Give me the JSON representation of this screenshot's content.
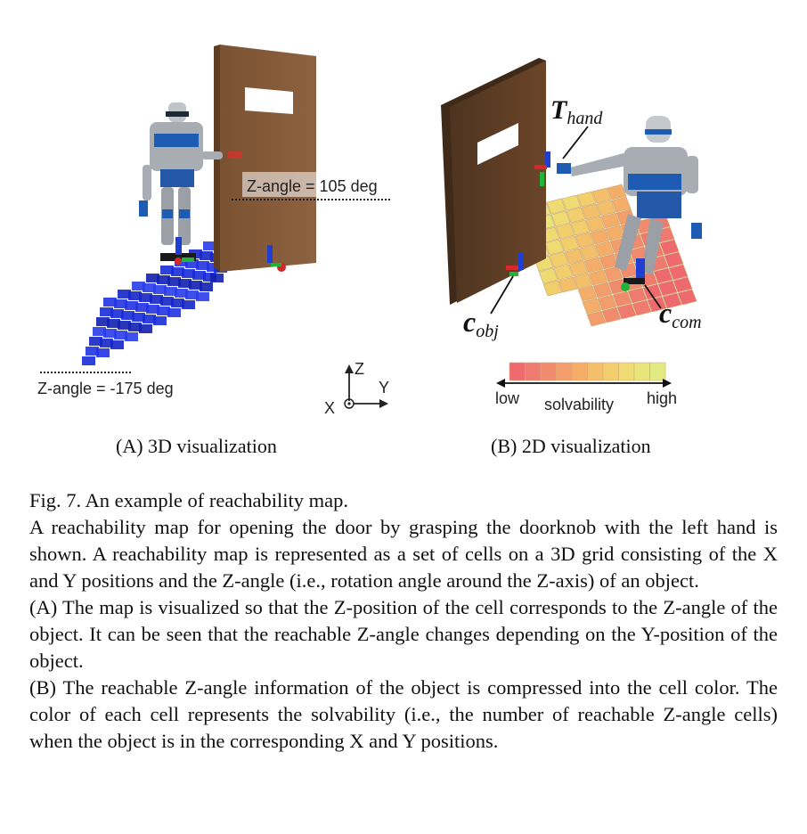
{
  "figure": {
    "panel_a": {
      "label_top": "Z-angle = 105 deg",
      "label_bottom": "Z-angle = -175 deg",
      "axis_z": "Z",
      "axis_y": "Y",
      "axis_x": "X",
      "sublabel": "(A) 3D visualization"
    },
    "panel_b": {
      "t_hand_main": "T",
      "t_hand_sub": "hand",
      "c_obj_main": "c",
      "c_obj_sub": "obj",
      "c_com_main": "c",
      "c_com_sub": "com",
      "colorbar_low": "low",
      "colorbar_mid": "solvability",
      "colorbar_high": "high",
      "colorbar_colors": [
        "#ee6a6e",
        "#ef7a6f",
        "#f18b6e",
        "#f39d6c",
        "#f4ae6a",
        "#f4bf6a",
        "#f2cf6c",
        "#eedc72",
        "#e8e57a",
        "#e2ea84"
      ],
      "sublabel": "(B) 2D visualization"
    }
  },
  "caption": {
    "title": "Fig. 7. An example of reachability map.",
    "para1": "A reachability map for opening the door by grasping the doorknob with the left hand is shown. A reachability map is represented as a set of cells on a 3D grid consisting of the X and Y positions and the Z-angle (i.e., rotation angle around the Z-axis) of an object.",
    "para2": "(A) The map is visualized so that the Z-position of the cell corresponds to the Z-angle of the object. It can be seen that the reachable Z-angle changes depending on the Y-position of the object.",
    "para3": "(B) The reachable Z-angle information of the object is compressed into the cell color. The color of each cell represents the solvability (i.e., the number of reachable Z-angle cells) when the object is in the corresponding X and Y positions."
  }
}
